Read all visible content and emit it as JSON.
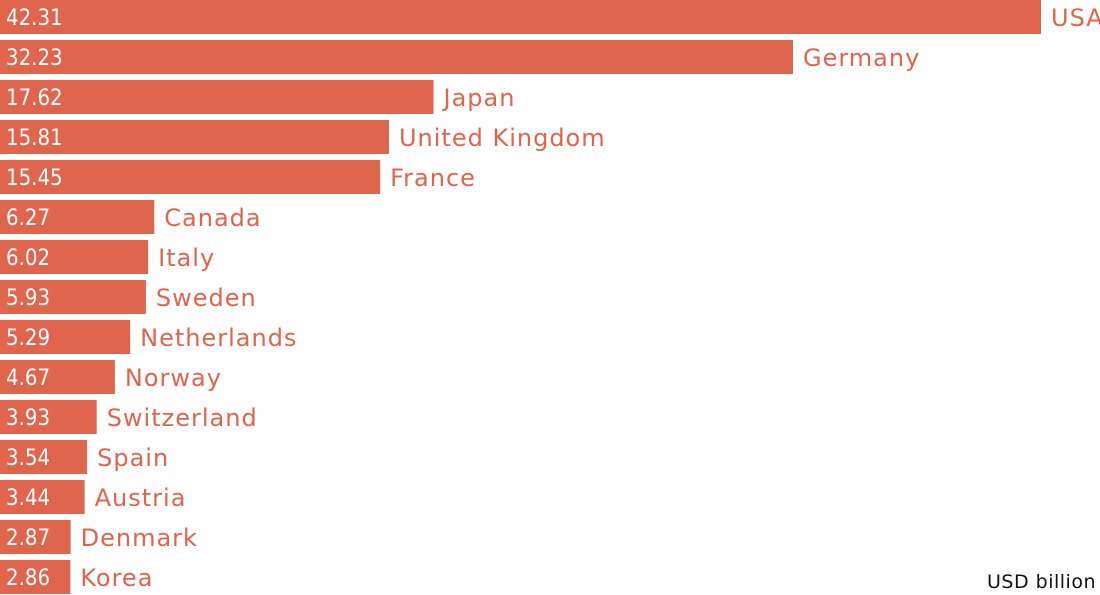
{
  "chart_data": {
    "type": "bar",
    "orientation": "horizontal",
    "categories": [
      "USA",
      "Germany",
      "Japan",
      "United Kingdom",
      "France",
      "Canada",
      "Italy",
      "Sweden",
      "Netherlands",
      "Norway",
      "Switzerland",
      "Spain",
      "Austria",
      "Denmark",
      "Korea"
    ],
    "values": [
      42.31,
      32.23,
      17.62,
      15.81,
      15.45,
      6.27,
      6.02,
      5.93,
      5.29,
      4.67,
      3.93,
      3.54,
      3.44,
      2.87,
      2.86
    ],
    "value_labels": [
      "42.31",
      "32.23",
      "17.62",
      "15.81",
      "15.45",
      "6.27",
      "6.02",
      "5.93",
      "5.29",
      "4.67",
      "3.93",
      "3.54",
      "3.44",
      "2.87",
      "2.86"
    ],
    "unit_label": "USD billion",
    "title": "",
    "xlabel": "",
    "ylabel": "",
    "xlim": [
      0,
      42.31
    ],
    "grid": false,
    "legend": "none",
    "colors": {
      "bar": "#e0654d",
      "value_text": "#ffffff",
      "category_text": "#e0654d",
      "unit_text": "#111111"
    }
  }
}
